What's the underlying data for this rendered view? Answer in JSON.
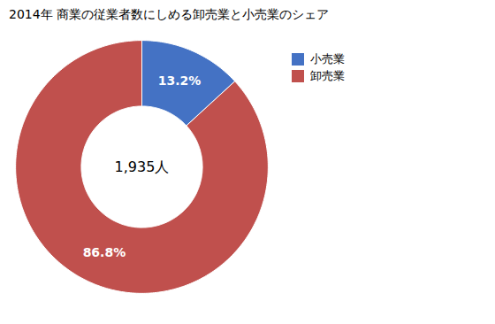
{
  "chart_data": {
    "type": "donut",
    "title": "2014年 商業の従業者数にしめる卸売業と小売業のシェア",
    "categories": [
      "小売業",
      "卸売業"
    ],
    "values": [
      13.2,
      86.8
    ],
    "colors": [
      "#4472C4",
      "#C0504D"
    ],
    "data_labels": true,
    "value_labels": [
      "13.2%",
      "86.8%"
    ],
    "annotations": [
      "1,935人"
    ],
    "legend": "right"
  }
}
